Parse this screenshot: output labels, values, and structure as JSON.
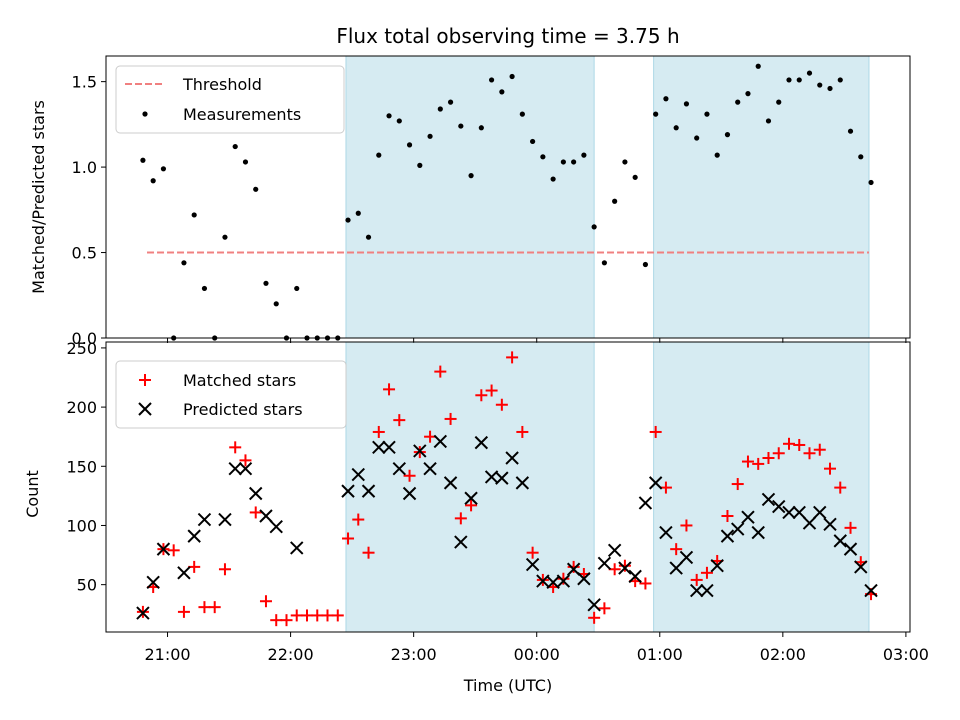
{
  "chart_data": [
    {
      "type": "scatter",
      "title": "Flux total observing time = 3.75 h",
      "ylabel": "Matched/Predicted stars",
      "xlabel": "",
      "ylim": [
        0,
        1.65
      ],
      "yticks": [
        "0.0",
        "0.5",
        "1.0",
        "1.5"
      ],
      "ytick_values": [
        0,
        0.5,
        1.0,
        1.5
      ],
      "legend_location": "upper-left",
      "threshold": {
        "name": "Threshold",
        "value": 0.5,
        "x_start": "20:50",
        "x_end": "02:42",
        "color": "#f08080"
      },
      "shaded_regions": [
        {
          "start": "22:27",
          "end": "00:28",
          "color": "#add8e6"
        },
        {
          "start": "00:57",
          "end": "02:42",
          "color": "#add8e6"
        }
      ],
      "series": [
        {
          "name": "Measurements",
          "color": "#000000",
          "marker": "dot",
          "points": [
            [
              "20:48",
              1.04
            ],
            [
              "20:53",
              0.92
            ],
            [
              "20:58",
              0.99
            ],
            [
              "21:03",
              0.0
            ],
            [
              "21:08",
              0.44
            ],
            [
              "21:13",
              0.72
            ],
            [
              "21:18",
              0.29
            ],
            [
              "21:23",
              0.0
            ],
            [
              "21:28",
              0.59
            ],
            [
              "21:33",
              1.12
            ],
            [
              "21:38",
              1.03
            ],
            [
              "21:43",
              0.87
            ],
            [
              "21:48",
              0.32
            ],
            [
              "21:53",
              0.2
            ],
            [
              "21:58",
              0.0
            ],
            [
              "22:03",
              0.29
            ],
            [
              "22:08",
              0.0
            ],
            [
              "22:13",
              0.0
            ],
            [
              "22:18",
              0.0
            ],
            [
              "22:23",
              0.0
            ],
            [
              "22:28",
              0.69
            ],
            [
              "22:33",
              0.73
            ],
            [
              "22:38",
              0.59
            ],
            [
              "22:43",
              1.07
            ],
            [
              "22:48",
              1.3
            ],
            [
              "22:53",
              1.27
            ],
            [
              "22:58",
              1.13
            ],
            [
              "23:03",
              1.01
            ],
            [
              "23:08",
              1.18
            ],
            [
              "23:13",
              1.34
            ],
            [
              "23:18",
              1.38
            ],
            [
              "23:23",
              1.24
            ],
            [
              "23:28",
              0.95
            ],
            [
              "23:33",
              1.23
            ],
            [
              "23:38",
              1.51
            ],
            [
              "23:43",
              1.44
            ],
            [
              "23:48",
              1.53
            ],
            [
              "23:53",
              1.31
            ],
            [
              "23:58",
              1.15
            ],
            [
              "00:03",
              1.06
            ],
            [
              "00:08",
              0.93
            ],
            [
              "00:13",
              1.03
            ],
            [
              "00:18",
              1.03
            ],
            [
              "00:23",
              1.07
            ],
            [
              "00:28",
              0.65
            ],
            [
              "00:33",
              0.44
            ],
            [
              "00:38",
              0.8
            ],
            [
              "00:43",
              1.03
            ],
            [
              "00:48",
              0.94
            ],
            [
              "00:53",
              0.43
            ],
            [
              "00:58",
              1.31
            ],
            [
              "01:03",
              1.4
            ],
            [
              "01:08",
              1.23
            ],
            [
              "01:13",
              1.37
            ],
            [
              "01:18",
              1.17
            ],
            [
              "01:23",
              1.31
            ],
            [
              "01:28",
              1.07
            ],
            [
              "01:33",
              1.19
            ],
            [
              "01:38",
              1.38
            ],
            [
              "01:43",
              1.43
            ],
            [
              "01:48",
              1.59
            ],
            [
              "01:53",
              1.27
            ],
            [
              "01:58",
              1.38
            ],
            [
              "02:03",
              1.51
            ],
            [
              "02:08",
              1.51
            ],
            [
              "02:13",
              1.55
            ],
            [
              "02:18",
              1.48
            ],
            [
              "02:23",
              1.46
            ],
            [
              "02:28",
              1.51
            ],
            [
              "02:33",
              1.21
            ],
            [
              "02:38",
              1.06
            ],
            [
              "02:43",
              0.91
            ]
          ]
        }
      ]
    },
    {
      "type": "scatter",
      "title": "",
      "ylabel": "Count",
      "xlabel": "Time (UTC)",
      "ylim": [
        10,
        255
      ],
      "yticks": [
        "50",
        "100",
        "150",
        "200",
        "250"
      ],
      "ytick_values": [
        50,
        100,
        150,
        200,
        250
      ],
      "xlim": [
        "20:30",
        "03:02"
      ],
      "xticks": [
        "21:00",
        "22:00",
        "23:00",
        "00:00",
        "01:00",
        "02:00",
        "03:00"
      ],
      "legend_location": "upper-left",
      "shaded_regions": [
        {
          "start": "22:27",
          "end": "00:28",
          "color": "#add8e6"
        },
        {
          "start": "00:57",
          "end": "02:42",
          "color": "#add8e6"
        }
      ],
      "series": [
        {
          "name": "Matched stars",
          "color": "#ff0000",
          "marker": "plus",
          "points": [
            [
              "20:48",
              27
            ],
            [
              "20:53",
              48
            ],
            [
              "20:58",
              80
            ],
            [
              "21:03",
              79
            ],
            [
              "21:08",
              27
            ],
            [
              "21:13",
              65
            ],
            [
              "21:18",
              31
            ],
            [
              "21:23",
              31
            ],
            [
              "21:28",
              63
            ],
            [
              "21:33",
              166
            ],
            [
              "21:38",
              155
            ],
            [
              "21:43",
              111
            ],
            [
              "21:48",
              36
            ],
            [
              "21:53",
              20
            ],
            [
              "21:58",
              20
            ],
            [
              "22:03",
              24
            ],
            [
              "22:08",
              24
            ],
            [
              "22:13",
              24
            ],
            [
              "22:18",
              24
            ],
            [
              "22:23",
              24
            ],
            [
              "22:28",
              89
            ],
            [
              "22:33",
              105
            ],
            [
              "22:38",
              77
            ],
            [
              "22:43",
              179
            ],
            [
              "22:48",
              215
            ],
            [
              "22:53",
              189
            ],
            [
              "22:58",
              142
            ],
            [
              "23:03",
              162
            ],
            [
              "23:08",
              175
            ],
            [
              "23:13",
              230
            ],
            [
              "23:18",
              190
            ],
            [
              "23:23",
              106
            ],
            [
              "23:28",
              117
            ],
            [
              "23:33",
              210
            ],
            [
              "23:38",
              214
            ],
            [
              "23:43",
              202
            ],
            [
              "23:48",
              242
            ],
            [
              "23:53",
              179
            ],
            [
              "23:58",
              77
            ],
            [
              "00:03",
              54
            ],
            [
              "00:08",
              48
            ],
            [
              "00:13",
              55
            ],
            [
              "00:18",
              65
            ],
            [
              "00:23",
              59
            ],
            [
              "00:28",
              22
            ],
            [
              "00:33",
              30
            ],
            [
              "00:38",
              63
            ],
            [
              "00:43",
              66
            ],
            [
              "00:48",
              53
            ],
            [
              "00:53",
              51
            ],
            [
              "00:58",
              179
            ],
            [
              "01:03",
              132
            ],
            [
              "01:08",
              80
            ],
            [
              "01:13",
              100
            ],
            [
              "01:18",
              54
            ],
            [
              "01:23",
              60
            ],
            [
              "01:28",
              70
            ],
            [
              "01:33",
              108
            ],
            [
              "01:38",
              135
            ],
            [
              "01:43",
              154
            ],
            [
              "01:48",
              152
            ],
            [
              "01:53",
              157
            ],
            [
              "01:58",
              161
            ],
            [
              "02:03",
              169
            ],
            [
              "02:08",
              168
            ],
            [
              "02:13",
              161
            ],
            [
              "02:18",
              164
            ],
            [
              "02:23",
              148
            ],
            [
              "02:28",
              132
            ],
            [
              "02:33",
              98
            ],
            [
              "02:38",
              69
            ],
            [
              "02:43",
              42
            ]
          ]
        },
        {
          "name": "Predicted stars",
          "color": "#000000",
          "marker": "x",
          "points": [
            [
              "20:48",
              26
            ],
            [
              "20:53",
              52
            ],
            [
              "20:58",
              80
            ],
            [
              "21:08",
              60
            ],
            [
              "21:13",
              91
            ],
            [
              "21:18",
              105
            ],
            [
              "21:28",
              105
            ],
            [
              "21:33",
              148
            ],
            [
              "21:38",
              148
            ],
            [
              "21:43",
              127
            ],
            [
              "21:48",
              108
            ],
            [
              "21:53",
              99
            ],
            [
              "22:03",
              81
            ],
            [
              "22:28",
              129
            ],
            [
              "22:33",
              143
            ],
            [
              "22:38",
              129
            ],
            [
              "22:43",
              166
            ],
            [
              "22:48",
              166
            ],
            [
              "22:53",
              148
            ],
            [
              "22:58",
              127
            ],
            [
              "23:03",
              163
            ],
            [
              "23:08",
              148
            ],
            [
              "23:13",
              171
            ],
            [
              "23:18",
              136
            ],
            [
              "23:23",
              86
            ],
            [
              "23:28",
              123
            ],
            [
              "23:33",
              170
            ],
            [
              "23:38",
              141
            ],
            [
              "23:43",
              140
            ],
            [
              "23:48",
              157
            ],
            [
              "23:53",
              136
            ],
            [
              "23:58",
              67
            ],
            [
              "00:03",
              53
            ],
            [
              "00:08",
              52
            ],
            [
              "00:13",
              53
            ],
            [
              "00:18",
              63
            ],
            [
              "00:23",
              55
            ],
            [
              "00:28",
              33
            ],
            [
              "00:33",
              68
            ],
            [
              "00:38",
              79
            ],
            [
              "00:43",
              64
            ],
            [
              "00:48",
              57
            ],
            [
              "00:53",
              119
            ],
            [
              "00:58",
              136
            ],
            [
              "01:03",
              94
            ],
            [
              "01:08",
              64
            ],
            [
              "01:13",
              73
            ],
            [
              "01:18",
              45
            ],
            [
              "01:23",
              45
            ],
            [
              "01:28",
              66
            ],
            [
              "01:33",
              91
            ],
            [
              "01:38",
              97
            ],
            [
              "01:43",
              107
            ],
            [
              "01:48",
              94
            ],
            [
              "01:53",
              122
            ],
            [
              "01:58",
              116
            ],
            [
              "02:03",
              111
            ],
            [
              "02:08",
              111
            ],
            [
              "02:13",
              102
            ],
            [
              "02:18",
              111
            ],
            [
              "02:23",
              101
            ],
            [
              "02:28",
              87
            ],
            [
              "02:33",
              80
            ],
            [
              "02:38",
              65
            ],
            [
              "02:43",
              45
            ]
          ]
        }
      ]
    }
  ]
}
